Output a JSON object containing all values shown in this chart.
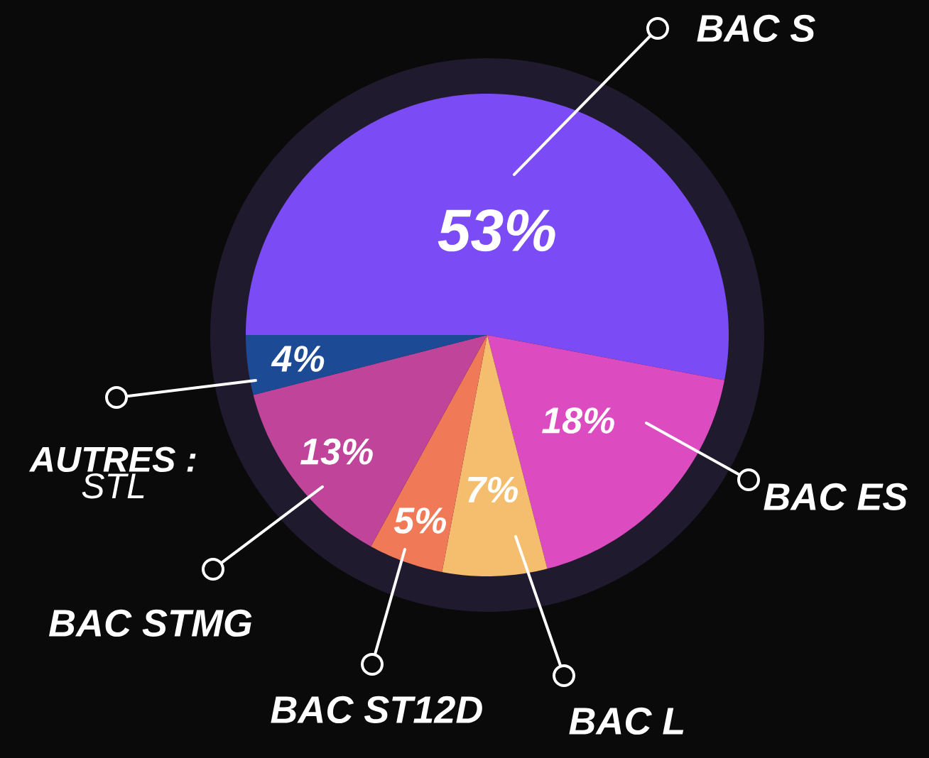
{
  "chart_data": {
    "type": "pie",
    "categories": [
      "BAC S",
      "BAC ES",
      "BAC L",
      "BAC ST12D",
      "BAC STMG",
      "**AUTRES :** STL"
    ],
    "values": [
      53,
      18,
      7,
      5,
      13,
      4
    ],
    "colors": [
      "#7b4cf5",
      "#dc4cc0",
      "#f5bd6e",
      "#f07a58",
      "#c0449a",
      "#1d4a95"
    ],
    "value_labels": [
      "53%",
      "18%",
      "7%",
      "5%",
      "13%",
      "4%"
    ]
  }
}
